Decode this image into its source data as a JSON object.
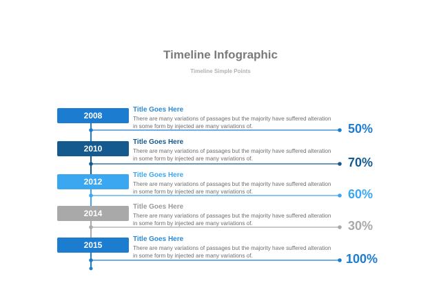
{
  "header": {
    "title": "Timeline Infographic",
    "subtitle": "Timeline Simple Points"
  },
  "items": [
    {
      "year": "2008",
      "title": "Title Goes Here",
      "line1": "There are many variations of passages but the majority have  suffered alteration",
      "line2": "in some form by injected  are many variations of.",
      "percent": "50%",
      "value": 50,
      "color": "#1c7ccf",
      "title_color": "#2b8ad6"
    },
    {
      "year": "2010",
      "title": "Title Goes Here",
      "line1": "There are many variations of passages but the majority have  suffered alteration",
      "line2": "in some form by injected  are many variations of.",
      "percent": "70%",
      "value": 70,
      "color": "#155a8f",
      "title_color": "#155a8f"
    },
    {
      "year": "2012",
      "title": "Title Goes Here",
      "line1": "There are many variations of passages but the majority have  suffered alteration",
      "line2": "in some form by injected  are many variations of.",
      "percent": "60%",
      "value": 60,
      "color": "#3aa7f0",
      "title_color": "#3aa7f0"
    },
    {
      "year": "2014",
      "title": "Title Goes Here",
      "line1": "There are many variations of passages but the majority have  suffered alteration",
      "line2": "in some form by injected  are many variations of.",
      "percent": "30%",
      "value": 30,
      "color": "#a9a9a9",
      "title_color": "#9a9a9a"
    },
    {
      "year": "2015",
      "title": "Title Goes Here",
      "line1": "There are many variations of passages but the majority have  suffered alteration",
      "line2": "in some form by injected  are many variations of.",
      "percent": "100%",
      "value": 100,
      "color": "#1c7ccf",
      "title_color": "#2b8ad6"
    }
  ]
}
